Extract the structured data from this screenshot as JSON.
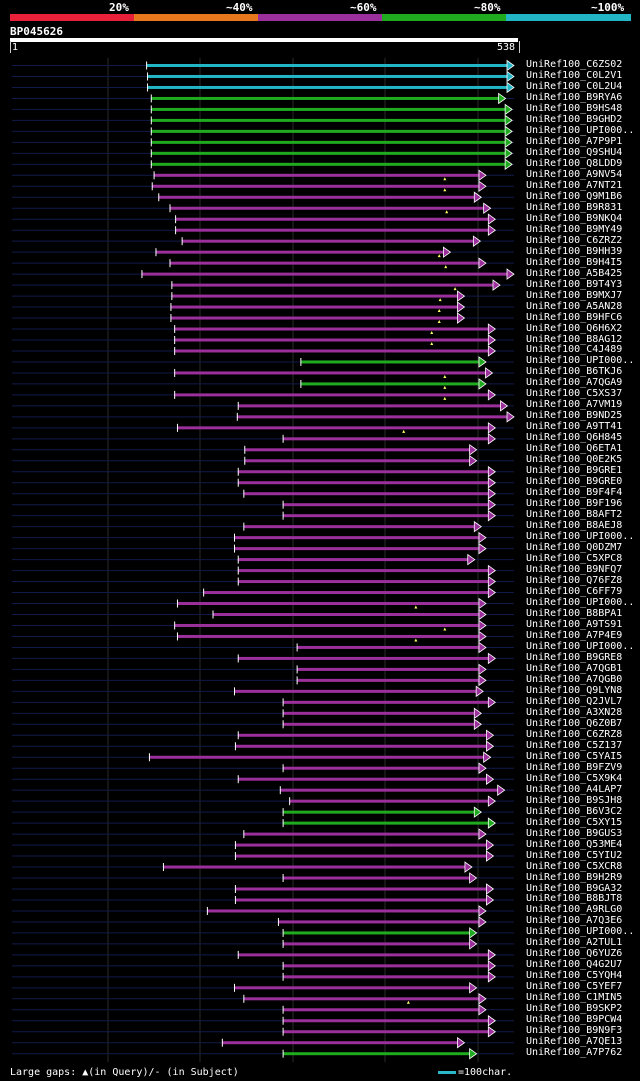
{
  "legend": {
    "percent_labels": [
      "20%",
      "~40%",
      "~60%",
      "~80%",
      "~100%"
    ],
    "colors": [
      "#e8203a",
      "#e8781e",
      "#9b2f9b",
      "#1faa1f",
      "#22b5c5"
    ]
  },
  "query": {
    "id": "BP045626",
    "start": "1",
    "end": "538",
    "length": 538
  },
  "chart_data": {
    "type": "alignment-overview",
    "query_length": 538,
    "identity_bins": [
      "20%",
      "~40%",
      "~60%",
      "~80%",
      "~100%"
    ],
    "hits": [
      {
        "id": "UniRef100_C6ZS02",
        "start": 145,
        "end": 538,
        "bin": 4
      },
      {
        "id": "UniRef100_C0L2V1",
        "start": 146,
        "end": 538,
        "bin": 4
      },
      {
        "id": "UniRef100_C0L2U4",
        "start": 146,
        "end": 538,
        "bin": 4
      },
      {
        "id": "UniRef100_B9RYA6",
        "start": 150,
        "end": 529,
        "bin": 3
      },
      {
        "id": "UniRef100_B9HS48",
        "start": 150,
        "end": 536,
        "bin": 3
      },
      {
        "id": "UniRef100_B9GHD2",
        "start": 150,
        "end": 536,
        "bin": 3
      },
      {
        "id": "UniRef100_UPI000..",
        "start": 150,
        "end": 536,
        "bin": 3
      },
      {
        "id": "UniRef100_A7P9P1",
        "start": 150,
        "end": 536,
        "bin": 3
      },
      {
        "id": "UniRef100_Q9SHU4",
        "start": 150,
        "end": 536,
        "bin": 3
      },
      {
        "id": "UniRef100_Q8LDD9",
        "start": 150,
        "end": 536,
        "bin": 3
      },
      {
        "id": "UniRef100_A9NV54",
        "start": 153,
        "end": 508,
        "bin": 2,
        "gap": 464
      },
      {
        "id": "UniRef100_A7NT21",
        "start": 151,
        "end": 508,
        "bin": 2,
        "gap": 464
      },
      {
        "id": "UniRef100_Q9M1B6",
        "start": 158,
        "end": 503,
        "bin": 2
      },
      {
        "id": "UniRef100_B9R831",
        "start": 170,
        "end": 513,
        "bin": 2,
        "gap": 466
      },
      {
        "id": "UniRef100_B9NKQ4",
        "start": 176,
        "end": 518,
        "bin": 2
      },
      {
        "id": "UniRef100_B9MY49",
        "start": 176,
        "end": 518,
        "bin": 2
      },
      {
        "id": "UniRef100_C6ZRZ2",
        "start": 183,
        "end": 502,
        "bin": 2
      },
      {
        "id": "UniRef100_B9HH39",
        "start": 155,
        "end": 470,
        "bin": 2,
        "gap": 458
      },
      {
        "id": "UniRef100_B9H4I5",
        "start": 170,
        "end": 508,
        "bin": 2,
        "gap": 465
      },
      {
        "id": "UniRef100_A5B425",
        "start": 140,
        "end": 538,
        "bin": 2
      },
      {
        "id": "UniRef100_B9T4Y3",
        "start": 172,
        "end": 523,
        "bin": 2,
        "gap": 475
      },
      {
        "id": "UniRef100_B9MXJ7",
        "start": 172,
        "end": 485,
        "bin": 2,
        "gap": 459
      },
      {
        "id": "UniRef100_A5AN28",
        "start": 171,
        "end": 485,
        "bin": 2,
        "gap": 458
      },
      {
        "id": "UniRef100_B9HFC6",
        "start": 171,
        "end": 485,
        "bin": 2,
        "gap": 458
      },
      {
        "id": "UniRef100_Q6H6X2",
        "start": 175,
        "end": 518,
        "bin": 2,
        "gap": 450
      },
      {
        "id": "UniRef100_B8AG12",
        "start": 175,
        "end": 518,
        "bin": 2,
        "gap": 450
      },
      {
        "id": "UniRef100_C4J489",
        "start": 175,
        "end": 518,
        "bin": 2
      },
      {
        "id": "UniRef100_UPI000..",
        "start": 310,
        "end": 508,
        "bin": 3
      },
      {
        "id": "UniRef100_B6TKJ6",
        "start": 175,
        "end": 515,
        "bin": 2,
        "gap": 464
      },
      {
        "id": "UniRef100_A7QGA9",
        "start": 310,
        "end": 508,
        "bin": 3,
        "gap": 464
      },
      {
        "id": "UniRef100_C5XS37",
        "start": 175,
        "end": 518,
        "bin": 2,
        "gap": 464
      },
      {
        "id": "UniRef100_A7VM19",
        "start": 243,
        "end": 531,
        "bin": 2
      },
      {
        "id": "UniRef100_B9ND25",
        "start": 242,
        "end": 538,
        "bin": 2
      },
      {
        "id": "UniRef100_A9TT41",
        "start": 178,
        "end": 518,
        "bin": 2,
        "gap": 420
      },
      {
        "id": "UniRef100_Q6H845",
        "start": 291,
        "end": 518,
        "bin": 2
      },
      {
        "id": "UniRef100_Q6ETA1",
        "start": 250,
        "end": 498,
        "bin": 2
      },
      {
        "id": "UniRef100_Q0E2K5",
        "start": 250,
        "end": 498,
        "bin": 2
      },
      {
        "id": "UniRef100_B9GRE1",
        "start": 243,
        "end": 518,
        "bin": 2
      },
      {
        "id": "UniRef100_B9GRE0",
        "start": 243,
        "end": 518,
        "bin": 2
      },
      {
        "id": "UniRef100_B9F4F4",
        "start": 249,
        "end": 518,
        "bin": 2
      },
      {
        "id": "UniRef100_B9F196",
        "start": 291,
        "end": 518,
        "bin": 2
      },
      {
        "id": "UniRef100_B8AFT2",
        "start": 291,
        "end": 518,
        "bin": 2
      },
      {
        "id": "UniRef100_B8AEJ8",
        "start": 249,
        "end": 503,
        "bin": 2
      },
      {
        "id": "UniRef100_UPI000..",
        "start": 239,
        "end": 508,
        "bin": 2
      },
      {
        "id": "UniRef100_Q0DZM7",
        "start": 239,
        "end": 508,
        "bin": 2
      },
      {
        "id": "UniRef100_C5XPC8",
        "start": 243,
        "end": 496,
        "bin": 2
      },
      {
        "id": "UniRef100_B9NFQ7",
        "start": 243,
        "end": 518,
        "bin": 2
      },
      {
        "id": "UniRef100_Q76FZ8",
        "start": 243,
        "end": 518,
        "bin": 2
      },
      {
        "id": "UniRef100_C6FF79",
        "start": 206,
        "end": 518,
        "bin": 2
      },
      {
        "id": "UniRef100_UPI000..",
        "start": 178,
        "end": 508,
        "bin": 2,
        "gap": 433
      },
      {
        "id": "UniRef100_B8BPA1",
        "start": 216,
        "end": 508,
        "bin": 2
      },
      {
        "id": "UniRef100_A9TS91",
        "start": 175,
        "end": 508,
        "bin": 2,
        "gap": 464
      },
      {
        "id": "UniRef100_A7P4E9",
        "start": 178,
        "end": 508,
        "bin": 2,
        "gap": 433
      },
      {
        "id": "UniRef100_UPI000..",
        "start": 306,
        "end": 508,
        "bin": 2
      },
      {
        "id": "UniRef100_B9GRE8",
        "start": 243,
        "end": 518,
        "bin": 2
      },
      {
        "id": "UniRef100_A7QGB1",
        "start": 306,
        "end": 508,
        "bin": 2
      },
      {
        "id": "UniRef100_A7QGB0",
        "start": 306,
        "end": 508,
        "bin": 2
      },
      {
        "id": "UniRef100_Q9LYN8",
        "start": 239,
        "end": 505,
        "bin": 2
      },
      {
        "id": "UniRef100_Q2JVL7",
        "start": 291,
        "end": 518,
        "bin": 2
      },
      {
        "id": "UniRef100_A3XN28",
        "start": 291,
        "end": 503,
        "bin": 2
      },
      {
        "id": "UniRef100_Q6Z0B7",
        "start": 291,
        "end": 503,
        "bin": 2
      },
      {
        "id": "UniRef100_C6ZRZ8",
        "start": 243,
        "end": 516,
        "bin": 2
      },
      {
        "id": "UniRef100_C5Z137",
        "start": 240,
        "end": 516,
        "bin": 2
      },
      {
        "id": "UniRef100_C5YAI5",
        "start": 148,
        "end": 513,
        "bin": 2
      },
      {
        "id": "UniRef100_B9FZV9",
        "start": 291,
        "end": 508,
        "bin": 2
      },
      {
        "id": "UniRef100_C5X9K4",
        "start": 243,
        "end": 516,
        "bin": 2
      },
      {
        "id": "UniRef100_A4LAP7",
        "start": 288,
        "end": 528,
        "bin": 2
      },
      {
        "id": "UniRef100_B9SJH8",
        "start": 298,
        "end": 518,
        "bin": 2
      },
      {
        "id": "UniRef100_B6V3C2",
        "start": 291,
        "end": 503,
        "bin": 3
      },
      {
        "id": "UniRef100_C5XY15",
        "start": 291,
        "end": 518,
        "bin": 3
      },
      {
        "id": "UniRef100_B9GUS3",
        "start": 249,
        "end": 508,
        "bin": 2
      },
      {
        "id": "UniRef100_Q53ME4",
        "start": 240,
        "end": 516,
        "bin": 2
      },
      {
        "id": "UniRef100_C5YIU2",
        "start": 240,
        "end": 516,
        "bin": 2
      },
      {
        "id": "UniRef100_C5XCR8",
        "start": 163,
        "end": 493,
        "bin": 2
      },
      {
        "id": "UniRef100_B9H2R9",
        "start": 291,
        "end": 498,
        "bin": 2
      },
      {
        "id": "UniRef100_B9GA32",
        "start": 240,
        "end": 516,
        "bin": 2
      },
      {
        "id": "UniRef100_B8BJT8",
        "start": 240,
        "end": 516,
        "bin": 2
      },
      {
        "id": "UniRef100_A9RLG0",
        "start": 210,
        "end": 508,
        "bin": 2
      },
      {
        "id": "UniRef100_A7Q3E6",
        "start": 286,
        "end": 508,
        "bin": 2
      },
      {
        "id": "UniRef100_UPI000..",
        "start": 291,
        "end": 498,
        "bin": 3
      },
      {
        "id": "UniRef100_A2TUL1",
        "start": 291,
        "end": 498,
        "bin": 2
      },
      {
        "id": "UniRef100_Q6YUZ6",
        "start": 243,
        "end": 518,
        "bin": 2
      },
      {
        "id": "UniRef100_Q4G2U7",
        "start": 291,
        "end": 518,
        "bin": 2
      },
      {
        "id": "UniRef100_C5YQH4",
        "start": 291,
        "end": 518,
        "bin": 2
      },
      {
        "id": "UniRef100_C5YEF7",
        "start": 239,
        "end": 498,
        "bin": 2
      },
      {
        "id": "UniRef100_C1MIN5",
        "start": 249,
        "end": 508,
        "bin": 2,
        "gap": 425
      },
      {
        "id": "UniRef100_B9SKP2",
        "start": 291,
        "end": 508,
        "bin": 2
      },
      {
        "id": "UniRef100_B9PCW4",
        "start": 291,
        "end": 518,
        "bin": 2
      },
      {
        "id": "UniRef100_B9N9F3",
        "start": 291,
        "end": 518,
        "bin": 2
      },
      {
        "id": "UniRef100_A7QE13",
        "start": 226,
        "end": 485,
        "bin": 2
      },
      {
        "id": "UniRef100_A7P762",
        "start": 291,
        "end": 498,
        "bin": 3
      }
    ]
  },
  "footer": {
    "gaps_label": "Large gaps: ▲(in Query)/- (in Subject)",
    "scale_label": "=100char."
  }
}
